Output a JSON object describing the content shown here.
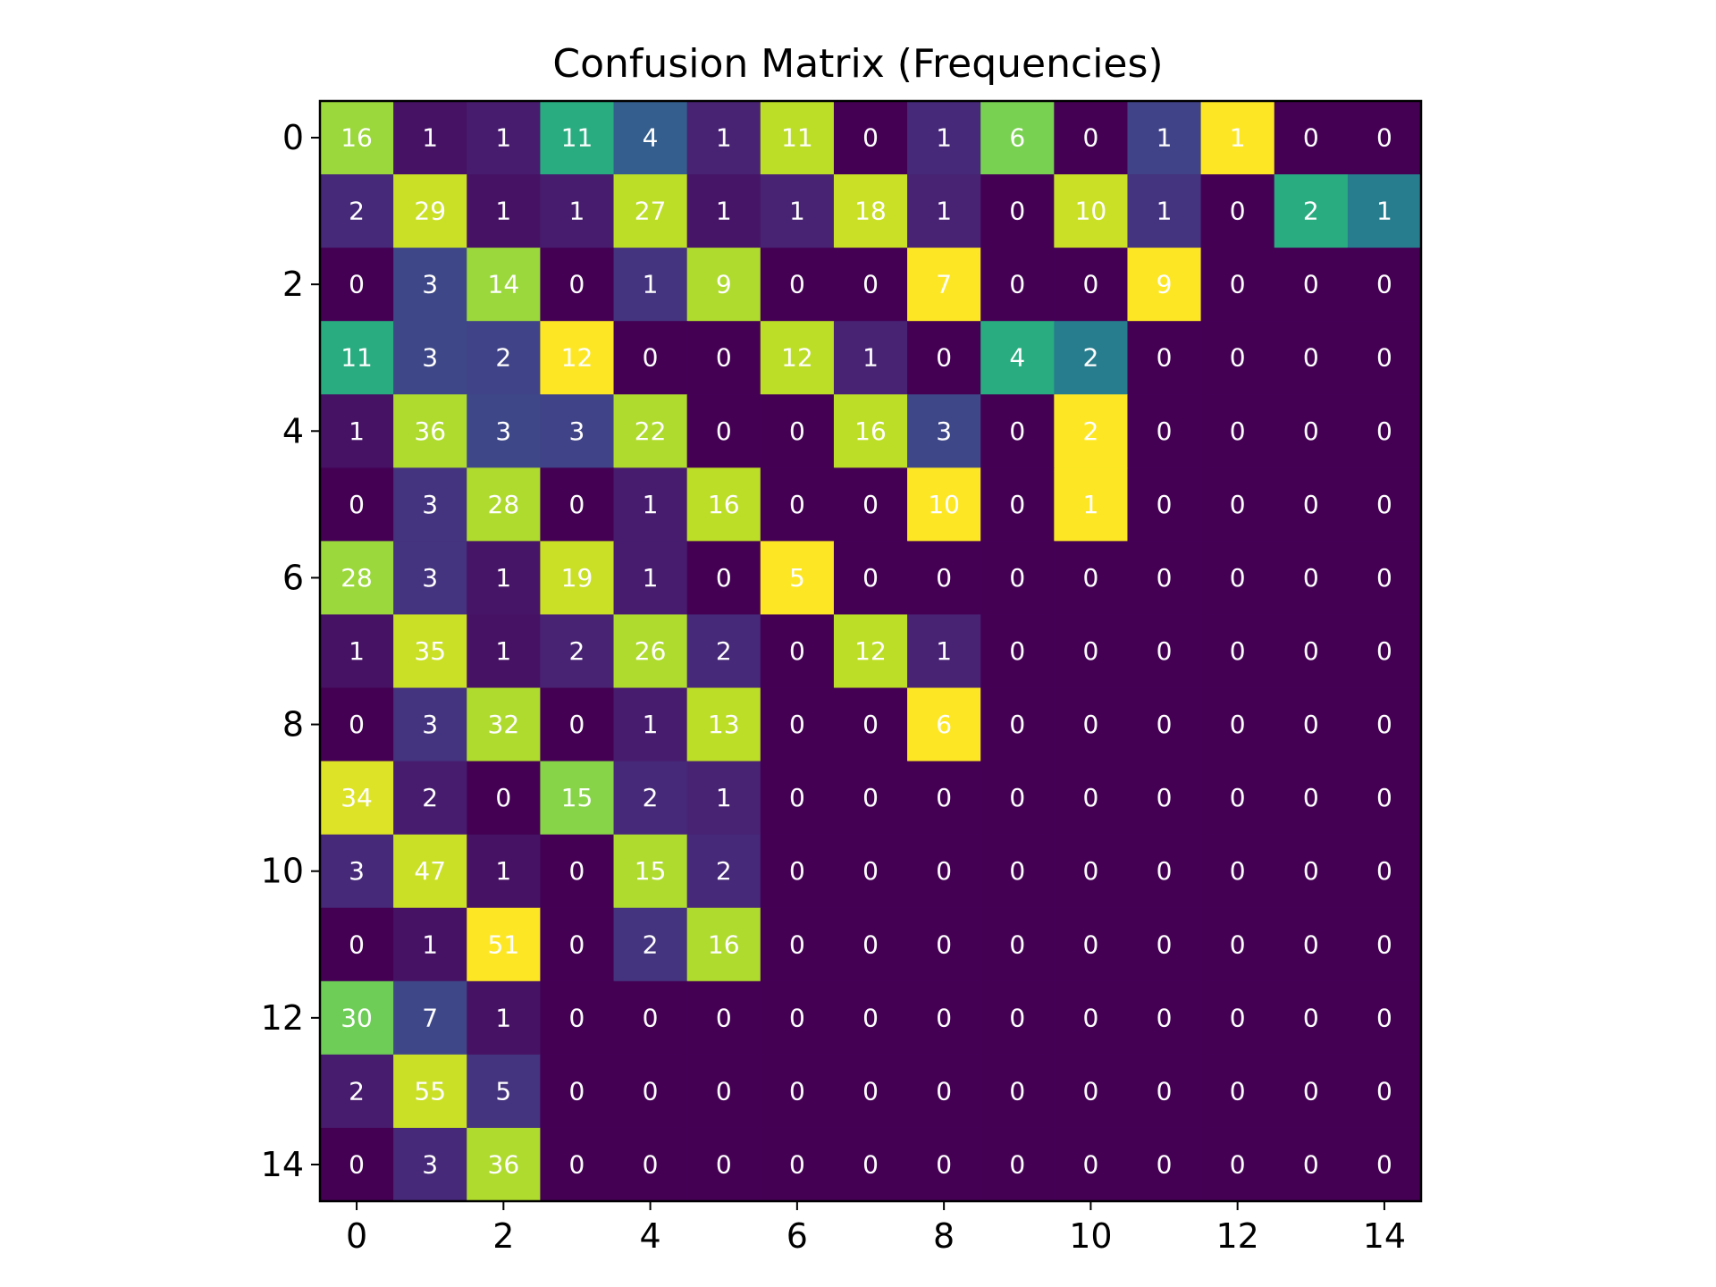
{
  "chart_data": {
    "type": "heatmap",
    "title": "Confusion Matrix (Frequencies)",
    "xlabel": "",
    "ylabel": "",
    "colormap": "viridis",
    "color_scale": "per-row (each row normalized to its own maximum)",
    "rows": [
      0,
      1,
      2,
      3,
      4,
      5,
      6,
      7,
      8,
      9,
      10,
      11,
      12,
      13,
      14
    ],
    "columns": [
      0,
      1,
      2,
      3,
      4,
      5,
      6,
      7,
      8,
      9,
      10,
      11,
      12,
      13,
      14
    ],
    "x_ticks": [
      "0",
      "2",
      "4",
      "6",
      "8",
      "10",
      "12",
      "14"
    ],
    "y_ticks": [
      "0",
      "2",
      "4",
      "6",
      "8",
      "10",
      "12",
      "14"
    ],
    "values": [
      [
        16,
        1,
        1,
        11,
        4,
        1,
        11,
        0,
        1,
        6,
        0,
        1,
        1,
        0,
        0
      ],
      [
        2,
        29,
        1,
        1,
        27,
        1,
        1,
        18,
        1,
        0,
        10,
        1,
        0,
        2,
        1
      ],
      [
        0,
        3,
        14,
        0,
        1,
        9,
        0,
        0,
        7,
        0,
        0,
        9,
        0,
        0,
        0
      ],
      [
        11,
        3,
        2,
        12,
        0,
        0,
        12,
        1,
        0,
        4,
        2,
        0,
        0,
        0,
        0
      ],
      [
        1,
        36,
        3,
        3,
        22,
        0,
        0,
        16,
        3,
        0,
        2,
        0,
        0,
        0,
        0
      ],
      [
        0,
        3,
        28,
        0,
        1,
        16,
        0,
        0,
        10,
        0,
        1,
        0,
        0,
        0,
        0
      ],
      [
        28,
        3,
        1,
        19,
        1,
        0,
        5,
        0,
        0,
        0,
        0,
        0,
        0,
        0,
        0
      ],
      [
        1,
        35,
        1,
        2,
        26,
        2,
        0,
        12,
        1,
        0,
        0,
        0,
        0,
        0,
        0
      ],
      [
        0,
        3,
        32,
        0,
        1,
        13,
        0,
        0,
        6,
        0,
        0,
        0,
        0,
        0,
        0
      ],
      [
        34,
        2,
        0,
        15,
        2,
        1,
        0,
        0,
        0,
        0,
        0,
        0,
        0,
        0,
        0
      ],
      [
        3,
        47,
        1,
        0,
        15,
        2,
        0,
        0,
        0,
        0,
        0,
        0,
        0,
        0,
        0
      ],
      [
        0,
        1,
        51,
        0,
        2,
        16,
        0,
        0,
        0,
        0,
        0,
        0,
        0,
        0,
        0
      ],
      [
        30,
        7,
        1,
        0,
        0,
        0,
        0,
        0,
        0,
        0,
        0,
        0,
        0,
        0,
        0
      ],
      [
        2,
        55,
        5,
        0,
        0,
        0,
        0,
        0,
        0,
        0,
        0,
        0,
        0,
        0,
        0
      ],
      [
        0,
        3,
        36,
        0,
        0,
        0,
        0,
        0,
        0,
        0,
        0,
        0,
        0,
        0,
        0
      ]
    ],
    "color_intensity": [
      [
        0.85,
        0.05,
        0.08,
        0.62,
        0.3,
        0.1,
        0.9,
        0.0,
        0.12,
        0.8,
        0.0,
        0.2,
        1.0,
        0.0,
        0.0
      ],
      [
        0.12,
        0.92,
        0.05,
        0.08,
        0.9,
        0.06,
        0.1,
        0.92,
        0.1,
        0.0,
        0.92,
        0.15,
        0.0,
        0.62,
        0.42
      ],
      [
        0.0,
        0.22,
        0.85,
        0.0,
        0.15,
        0.88,
        0.0,
        0.0,
        1.0,
        0.0,
        0.0,
        1.0,
        0.0,
        0.0,
        0.0
      ],
      [
        0.62,
        0.22,
        0.2,
        1.0,
        0.0,
        0.0,
        0.9,
        0.1,
        0.0,
        0.62,
        0.42,
        0.0,
        0.0,
        0.0,
        0.0
      ],
      [
        0.05,
        0.88,
        0.22,
        0.2,
        0.88,
        0.0,
        0.0,
        0.9,
        0.22,
        0.0,
        1.0,
        0.0,
        0.0,
        0.0,
        0.0
      ],
      [
        0.0,
        0.15,
        0.88,
        0.0,
        0.08,
        0.9,
        0.0,
        0.0,
        1.0,
        0.0,
        1.0,
        0.0,
        0.0,
        0.0,
        0.0
      ],
      [
        0.85,
        0.15,
        0.06,
        0.92,
        0.08,
        0.0,
        1.0,
        0.0,
        0.0,
        0.0,
        0.0,
        0.0,
        0.0,
        0.0,
        0.0
      ],
      [
        0.05,
        0.92,
        0.05,
        0.1,
        0.88,
        0.12,
        0.0,
        0.9,
        0.1,
        0.0,
        0.0,
        0.0,
        0.0,
        0.0,
        0.0
      ],
      [
        0.0,
        0.15,
        0.88,
        0.0,
        0.08,
        0.9,
        0.0,
        0.0,
        1.0,
        0.0,
        0.0,
        0.0,
        0.0,
        0.0,
        0.0
      ],
      [
        0.95,
        0.08,
        0.0,
        0.82,
        0.12,
        0.1,
        0.0,
        0.0,
        0.0,
        0.0,
        0.0,
        0.0,
        0.0,
        0.0,
        0.0
      ],
      [
        0.12,
        0.92,
        0.05,
        0.0,
        0.88,
        0.12,
        0.0,
        0.0,
        0.0,
        0.0,
        0.0,
        0.0,
        0.0,
        0.0,
        0.0
      ],
      [
        0.0,
        0.05,
        1.0,
        0.0,
        0.15,
        0.88,
        0.0,
        0.0,
        0.0,
        0.0,
        0.0,
        0.0,
        0.0,
        0.0,
        0.0
      ],
      [
        0.78,
        0.22,
        0.05,
        0.0,
        0.0,
        0.0,
        0.0,
        0.0,
        0.0,
        0.0,
        0.0,
        0.0,
        0.0,
        0.0,
        0.0
      ],
      [
        0.08,
        0.92,
        0.15,
        0.0,
        0.0,
        0.0,
        0.0,
        0.0,
        0.0,
        0.0,
        0.0,
        0.0,
        0.0,
        0.0,
        0.0
      ],
      [
        0.0,
        0.12,
        0.88,
        0.0,
        0.0,
        0.0,
        0.0,
        0.0,
        0.0,
        0.0,
        0.0,
        0.0,
        0.0,
        0.0,
        0.0
      ]
    ],
    "grid": false,
    "legend": "none"
  }
}
